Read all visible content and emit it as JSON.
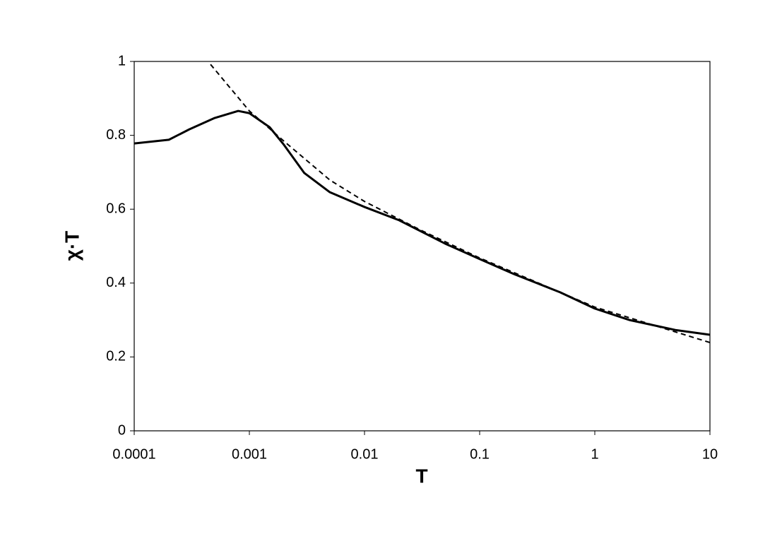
{
  "chart_data": {
    "type": "line",
    "xlabel": "T",
    "ylabel": "χ·T",
    "xscale": "log",
    "grid": false,
    "xlim": [
      0.0001,
      10
    ],
    "xticks": [
      0.0001,
      0.001,
      0.01,
      0.1,
      1,
      10
    ],
    "ylim": [
      0,
      1
    ],
    "yticks": [
      0,
      0.2,
      0.4,
      0.6,
      0.8,
      1
    ],
    "series": [
      {
        "color": "#000000",
        "linestyle": "solid",
        "x": [
          0.0001,
          0.0002,
          0.0003,
          0.0005,
          0.0008,
          0.001,
          0.0015,
          0.002,
          0.003,
          0.005,
          0.01,
          0.02,
          0.05,
          0.1,
          0.2,
          0.5,
          1,
          2,
          5,
          10
        ],
        "values": [
          0.778,
          0.788,
          0.816,
          0.847,
          0.866,
          0.86,
          0.822,
          0.774,
          0.698,
          0.646,
          0.606,
          0.57,
          0.507,
          0.465,
          0.424,
          0.375,
          0.331,
          0.3,
          0.273,
          0.26
        ]
      },
      {
        "color": "#000000",
        "linestyle": "dashed",
        "x": [
          0.00046,
          0.001,
          0.002,
          0.005,
          0.01,
          0.03,
          0.1,
          1,
          10
        ],
        "values": [
          0.992,
          0.866,
          0.784,
          0.679,
          0.621,
          0.545,
          0.468,
          0.335,
          0.239
        ]
      }
    ]
  }
}
